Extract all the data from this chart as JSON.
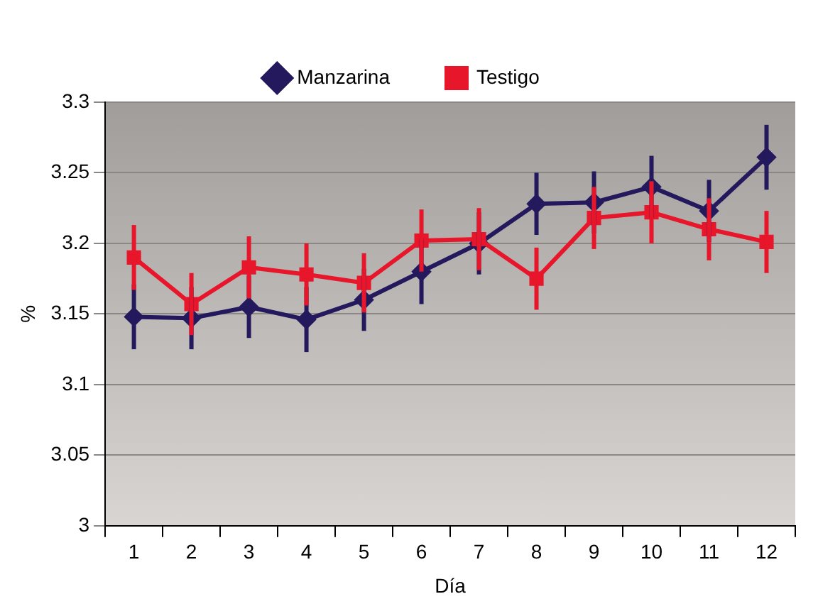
{
  "chart_data": {
    "type": "line",
    "xlabel": "Día",
    "ylabel": "%",
    "categories": [
      "1",
      "2",
      "3",
      "4",
      "5",
      "6",
      "7",
      "8",
      "9",
      "10",
      "11",
      "12"
    ],
    "series": [
      {
        "name": "Manzarina",
        "color": "#25195e",
        "marker": "diamond",
        "values": [
          3.148,
          3.147,
          3.155,
          3.146,
          3.16,
          3.18,
          3.2,
          3.228,
          3.229,
          3.24,
          3.223,
          3.261
        ],
        "errors": [
          0.023,
          0.022,
          0.022,
          0.023,
          0.022,
          0.023,
          0.022,
          0.022,
          0.022,
          0.022,
          0.022,
          0.023
        ]
      },
      {
        "name": "Testigo",
        "color": "#e8162b",
        "marker": "square",
        "values": [
          3.19,
          3.157,
          3.183,
          3.178,
          3.172,
          3.202,
          3.203,
          3.175,
          3.218,
          3.222,
          3.21,
          3.201
        ],
        "errors": [
          0.023,
          0.022,
          0.022,
          0.022,
          0.021,
          0.022,
          0.022,
          0.022,
          0.022,
          0.022,
          0.022,
          0.022
        ]
      }
    ],
    "ylim": [
      3,
      3.3
    ],
    "yticks": [
      3,
      3.05,
      3.1,
      3.15,
      3.2,
      3.25,
      3.3
    ],
    "grid": "y",
    "legend": "top",
    "line_style": "solid"
  }
}
